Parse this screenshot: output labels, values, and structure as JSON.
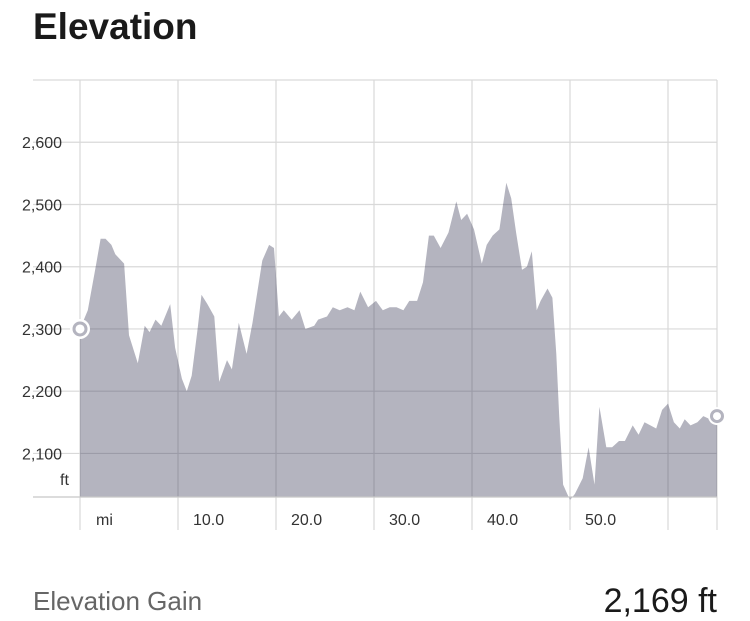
{
  "header": {
    "title": "Elevation"
  },
  "colors": {
    "area": "#b4b4bf",
    "grid": "#d9d9d9",
    "grid_over_area": "#9c9ca8",
    "endpoint": "#b4b4bf"
  },
  "chart_data": {
    "type": "area",
    "title": "",
    "xlabel": "mi",
    "ylabel": "ft",
    "xlim": [
      0,
      65
    ],
    "ylim": [
      2030,
      2700
    ],
    "x_ticks": [
      10,
      20,
      30,
      40,
      50
    ],
    "x_tick_labels": [
      "10.0",
      "20.0",
      "30.0",
      "40.0",
      "50.0"
    ],
    "y_ticks": [
      2100,
      2200,
      2300,
      2400,
      2500,
      2600
    ],
    "y_tick_labels": [
      "2,100",
      "2,200",
      "2,300",
      "2,400",
      "2,500",
      "2,600"
    ],
    "x_minor_grid": [
      0,
      10,
      20,
      30,
      40,
      50,
      60,
      65
    ],
    "grid": true,
    "series": [
      {
        "x": [
          0,
          0.8,
          1.6,
          2.1,
          2.6,
          3.2,
          3.6,
          4.5,
          5.0,
          5.9,
          6.6,
          7.1,
          7.7,
          8.3,
          9.2,
          9.7,
          10.4,
          10.9,
          11.4,
          12.0,
          12.4,
          13.0,
          13.7,
          14.2,
          15.0,
          15.5,
          16.2,
          17.0,
          17.6,
          18.1,
          18.6,
          19.3,
          19.8,
          20.3,
          20.8,
          21.6,
          22.4,
          23.0,
          23.9,
          24.3,
          25.2,
          25.8,
          26.5,
          27.3,
          28.0,
          28.6,
          29.4,
          30.2,
          30.9,
          31.6,
          32.3,
          33.0,
          33.6,
          34.4,
          35.0,
          35.6,
          36.1,
          36.8,
          37.6,
          38.4,
          38.9,
          39.5,
          40.2,
          41.0,
          41.5,
          42.1,
          42.8,
          43.5,
          44.0,
          44.5,
          45.1,
          45.6,
          46.1,
          46.6,
          47.0,
          47.7,
          48.2,
          48.6,
          48.9,
          49.3,
          50.0,
          50.5,
          51.3,
          51.9,
          52.5,
          53.0,
          53.7,
          54.3,
          55.0,
          55.6,
          56.4,
          57.0,
          57.6,
          58.2,
          58.8,
          59.4,
          60.0,
          60.6,
          61.2,
          61.7,
          62.3,
          63.0,
          63.6,
          64.3,
          65.0
        ],
        "values": [
          2300,
          2330,
          2400,
          2445,
          2445,
          2435,
          2420,
          2405,
          2290,
          2245,
          2305,
          2295,
          2315,
          2305,
          2340,
          2270,
          2220,
          2200,
          2225,
          2300,
          2355,
          2340,
          2320,
          2215,
          2250,
          2235,
          2310,
          2260,
          2310,
          2360,
          2410,
          2435,
          2430,
          2320,
          2330,
          2315,
          2330,
          2300,
          2305,
          2315,
          2320,
          2335,
          2330,
          2335,
          2330,
          2360,
          2335,
          2345,
          2330,
          2335,
          2335,
          2330,
          2345,
          2345,
          2375,
          2450,
          2450,
          2430,
          2455,
          2505,
          2475,
          2485,
          2460,
          2405,
          2435,
          2450,
          2460,
          2535,
          2510,
          2455,
          2395,
          2400,
          2425,
          2330,
          2345,
          2365,
          2350,
          2260,
          2160,
          2050,
          2025,
          2035,
          2060,
          2110,
          2050,
          2175,
          2110,
          2110,
          2120,
          2120,
          2145,
          2130,
          2150,
          2145,
          2140,
          2170,
          2180,
          2150,
          2140,
          2155,
          2145,
          2150,
          2160,
          2155,
          2160
        ]
      }
    ]
  },
  "summary": {
    "gain_label": "Elevation Gain",
    "gain_value": "2,169 ft"
  }
}
